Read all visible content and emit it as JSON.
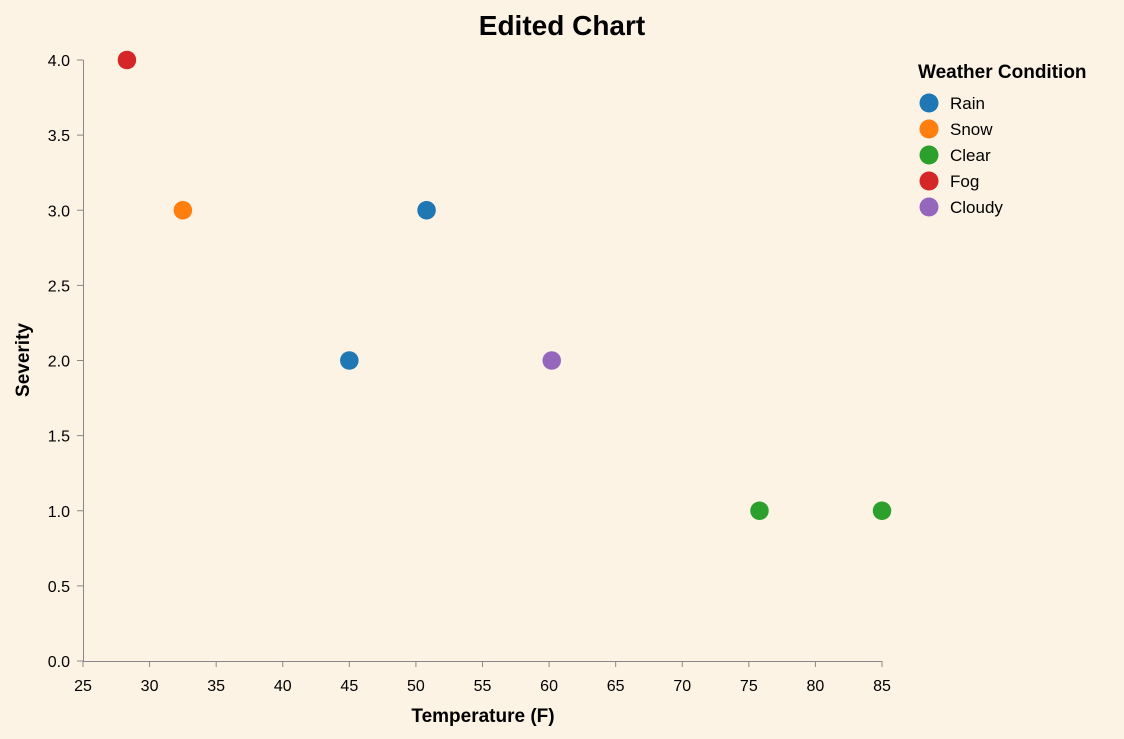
{
  "chart_data": {
    "type": "scatter",
    "title": "Edited Chart",
    "xlabel": "Temperature (F)",
    "ylabel": "Severity",
    "xlim": [
      25,
      85
    ],
    "ylim": [
      0,
      4
    ],
    "x_ticks": [
      "25",
      "30",
      "35",
      "40",
      "45",
      "50",
      "55",
      "60",
      "65",
      "70",
      "75",
      "80",
      "85"
    ],
    "y_ticks": [
      "0.0",
      "0.5",
      "1.0",
      "1.5",
      "2.0",
      "2.5",
      "3.0",
      "3.5",
      "4.0"
    ],
    "grid": false,
    "legend": {
      "title": "Weather Condition",
      "placement": "top-right",
      "entries": [
        {
          "label": "Rain",
          "color": "#1f77b4"
        },
        {
          "label": "Snow",
          "color": "#ff7f0e"
        },
        {
          "label": "Clear",
          "color": "#2ca02c"
        },
        {
          "label": "Fog",
          "color": "#d62728"
        },
        {
          "label": "Cloudy",
          "color": "#9467bd"
        }
      ]
    },
    "points": [
      {
        "x": 28.3,
        "y": 4.0,
        "category": "Fog"
      },
      {
        "x": 32.5,
        "y": 3.0,
        "category": "Snow"
      },
      {
        "x": 45.0,
        "y": 2.0,
        "category": "Rain"
      },
      {
        "x": 50.8,
        "y": 3.0,
        "category": "Rain"
      },
      {
        "x": 60.2,
        "y": 2.0,
        "category": "Cloudy"
      },
      {
        "x": 75.8,
        "y": 1.0,
        "category": "Clear"
      },
      {
        "x": 85.0,
        "y": 1.0,
        "category": "Clear"
      }
    ]
  }
}
